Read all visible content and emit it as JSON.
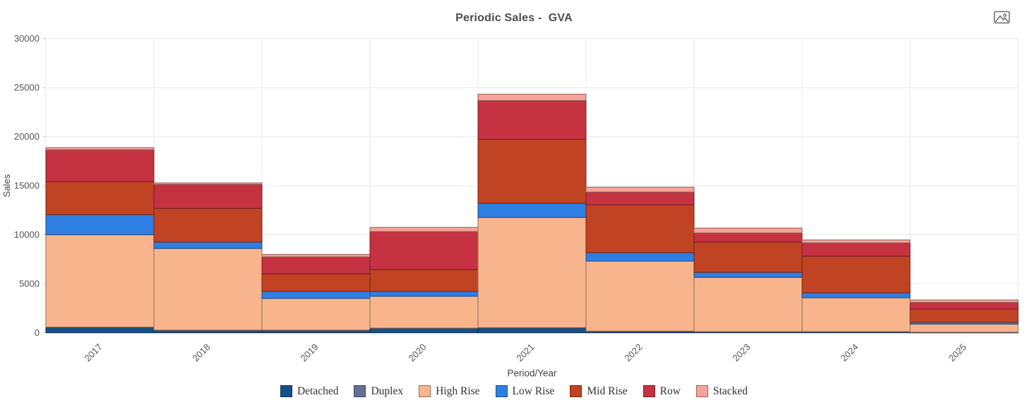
{
  "header": {
    "title": "Periodic Sales -  GVA",
    "export_icon": "image-export-icon"
  },
  "axes": {
    "y_ticks": [
      "0",
      "5000",
      "10000",
      "15000",
      "20000",
      "25000",
      "30000"
    ],
    "x_ticks": [
      "2017",
      "2018",
      "2019",
      "2020",
      "2021",
      "2022",
      "2023",
      "2024",
      "2025"
    ]
  },
  "chart_data": {
    "type": "bar",
    "stacked": true,
    "title": "Periodic Sales -  GVA",
    "xlabel": "Period/Year",
    "ylabel": "Sales",
    "ylim": [
      0,
      30000
    ],
    "ytick_step": 5000,
    "grid": true,
    "legend_position": "bottom",
    "categories": [
      "2017",
      "2018",
      "2019",
      "2020",
      "2021",
      "2022",
      "2023",
      "2024",
      "2025"
    ],
    "series": [
      {
        "name": "Detached",
        "color": "#155089",
        "values": [
          550,
          250,
          250,
          450,
          500,
          150,
          100,
          100,
          50
        ]
      },
      {
        "name": "Duplex",
        "color": "#5f7292",
        "values": [
          30,
          20,
          20,
          30,
          30,
          20,
          20,
          20,
          10
        ]
      },
      {
        "name": "High Rise",
        "color": "#f8b58d",
        "values": [
          9420,
          8330,
          3230,
          3240,
          11230,
          7140,
          5530,
          3450,
          820
        ]
      },
      {
        "name": "Low Rise",
        "color": "#2f7ee2",
        "values": [
          2050,
          650,
          720,
          500,
          1440,
          860,
          510,
          500,
          180
        ]
      },
      {
        "name": "Mid Rise",
        "color": "#c04323",
        "values": [
          3380,
          3440,
          1790,
          2220,
          6540,
          4880,
          3090,
          3740,
          1360
        ]
      },
      {
        "name": "Row",
        "color": "#c53241",
        "values": [
          3230,
          2450,
          1730,
          3880,
          3950,
          1300,
          930,
          1360,
          680
        ]
      },
      {
        "name": "Stacked",
        "color": "#f6a39c",
        "values": [
          220,
          150,
          250,
          430,
          640,
          500,
          500,
          300,
          250
        ]
      }
    ],
    "totals": [
      18880,
      15290,
      7990,
      10750,
      24330,
      14850,
      10680,
      9470,
      3350
    ],
    "colors": {
      "grid": "#e8e8e8",
      "tick_text": "#555555",
      "axis_label_text": "#444444",
      "title_text": "#4d4d4d"
    }
  }
}
